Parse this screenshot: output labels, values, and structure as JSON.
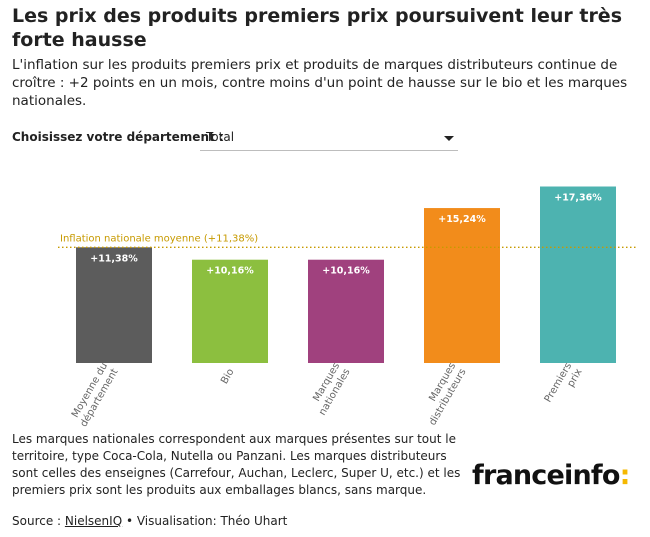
{
  "header": {
    "title": "Les prix des produits premiers prix poursuivent leur très forte hausse",
    "subtitle": "L'inflation sur les produits premiers prix et produits de marques distributeurs continue de croître : +2 points en un mois, contre moins d'un point de hausse sur le bio et les marques nationales."
  },
  "filter": {
    "label": "Choisissez votre département :",
    "selected": "Total"
  },
  "chart_data": {
    "type": "bar",
    "categories": [
      "Moyenne du département",
      "Bio",
      "Marques nationales",
      "Marques distributeurs",
      "Premiers prix"
    ],
    "values": [
      11.38,
      10.16,
      10.16,
      15.24,
      17.36
    ],
    "value_labels": [
      "+11,38%",
      "+10,16%",
      "+10,16%",
      "+15,24%",
      "+17,36%"
    ],
    "colors": [
      "#5c5c5c",
      "#8cbf3f",
      "#a0417e",
      "#f28c1b",
      "#4db3b0"
    ],
    "reference_line": {
      "label": "Inflation nationale moyenne (+11,38%)",
      "value": 11.38,
      "color": "#c79a00",
      "style": "dotted"
    },
    "ylim": [
      0,
      18
    ],
    "grid": false,
    "legend": "none"
  },
  "footnote": "Les marques nationales correspondent aux marques présentes sur tout le territoire, type Coca-Cola, Nutella ou Panzani. Les marques distributeurs sont celles des enseignes (Carrefour, Auchan, Leclerc, Super U, etc.) et les premiers prix sont les produits aux emballages blancs, sans marque.",
  "source": {
    "prefix": "Source : ",
    "link": "NielsenIQ",
    "suffix": " • Visualisation: Théo Uhart"
  },
  "logo": {
    "text": "franceinfo",
    "colon": ":",
    "colon_color": "#f5b800"
  }
}
